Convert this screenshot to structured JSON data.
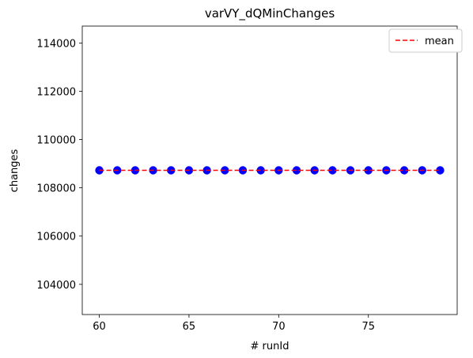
{
  "chart_data": {
    "type": "scatter",
    "title": "varVY_dQMinChanges",
    "xlabel": "# runId",
    "ylabel": "changes",
    "xlim": [
      59.05,
      79.95
    ],
    "ylim": [
      102750,
      114700
    ],
    "x_ticks": [
      60,
      65,
      70,
      75
    ],
    "y_ticks": [
      104000,
      106000,
      108000,
      110000,
      112000,
      114000
    ],
    "grid": false,
    "legend_position": "top-right",
    "series": [
      {
        "kind": "scatter",
        "color": "#0000ff",
        "x": [
          60,
          61,
          62,
          63,
          64,
          65,
          66,
          67,
          68,
          69,
          70,
          71,
          72,
          73,
          74,
          75,
          76,
          77,
          78,
          79
        ],
        "y": [
          108725,
          108725,
          108725,
          108725,
          108725,
          108725,
          108725,
          108725,
          108725,
          108725,
          108725,
          108725,
          108725,
          108725,
          108725,
          108725,
          108725,
          108725,
          108725,
          108725
        ]
      },
      {
        "kind": "line",
        "name": "mean",
        "color": "#ff0000",
        "style": "dashed",
        "x": [
          60,
          79
        ],
        "y": [
          108725,
          108725
        ]
      }
    ]
  }
}
